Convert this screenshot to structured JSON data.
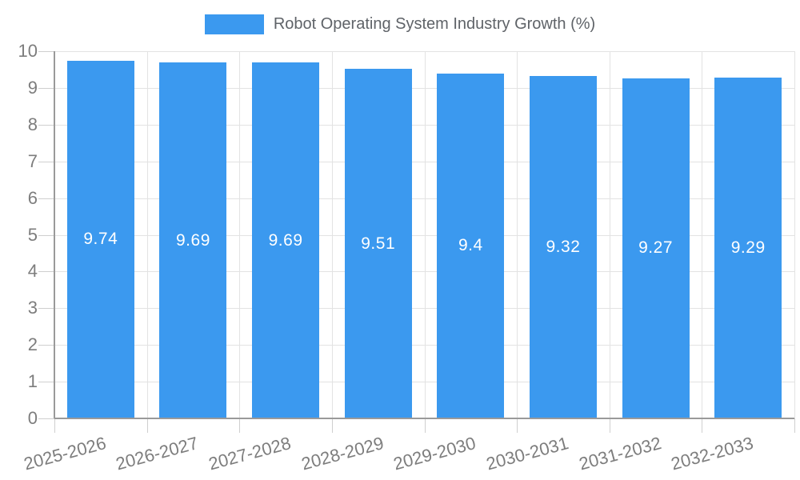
{
  "chart_data": {
    "type": "bar",
    "title": "Robot Operating System Industry Growth (%)",
    "categories": [
      "2025-2026",
      "2026-2027",
      "2027-2028",
      "2028-2029",
      "2029-2030",
      "2030-2031",
      "2031-2032",
      "2032-2033"
    ],
    "values": [
      9.74,
      9.69,
      9.69,
      9.51,
      9.4,
      9.32,
      9.27,
      9.29
    ],
    "bar_labels": [
      "9.74",
      "9.69",
      "9.69",
      "9.51",
      "9.4",
      "9.32",
      "9.27",
      "9.29"
    ],
    "xlabel": "",
    "ylabel": "",
    "ylim": [
      0,
      10
    ],
    "y_ticks": [
      0,
      1,
      2,
      3,
      4,
      5,
      6,
      7,
      8,
      9,
      10
    ],
    "grid": true,
    "legend_position": "top-center",
    "x_label_rotation_deg": -15,
    "colors": {
      "bar": "#3b99ef",
      "bar_label": "#ffffff",
      "axis_text": "#7d7d7d",
      "title_text": "#5f6368",
      "grid_line": "#e3e3e3",
      "tick_line": "#cfcfcf",
      "axis_line": "#9a9a9a",
      "background": "#ffffff"
    }
  }
}
